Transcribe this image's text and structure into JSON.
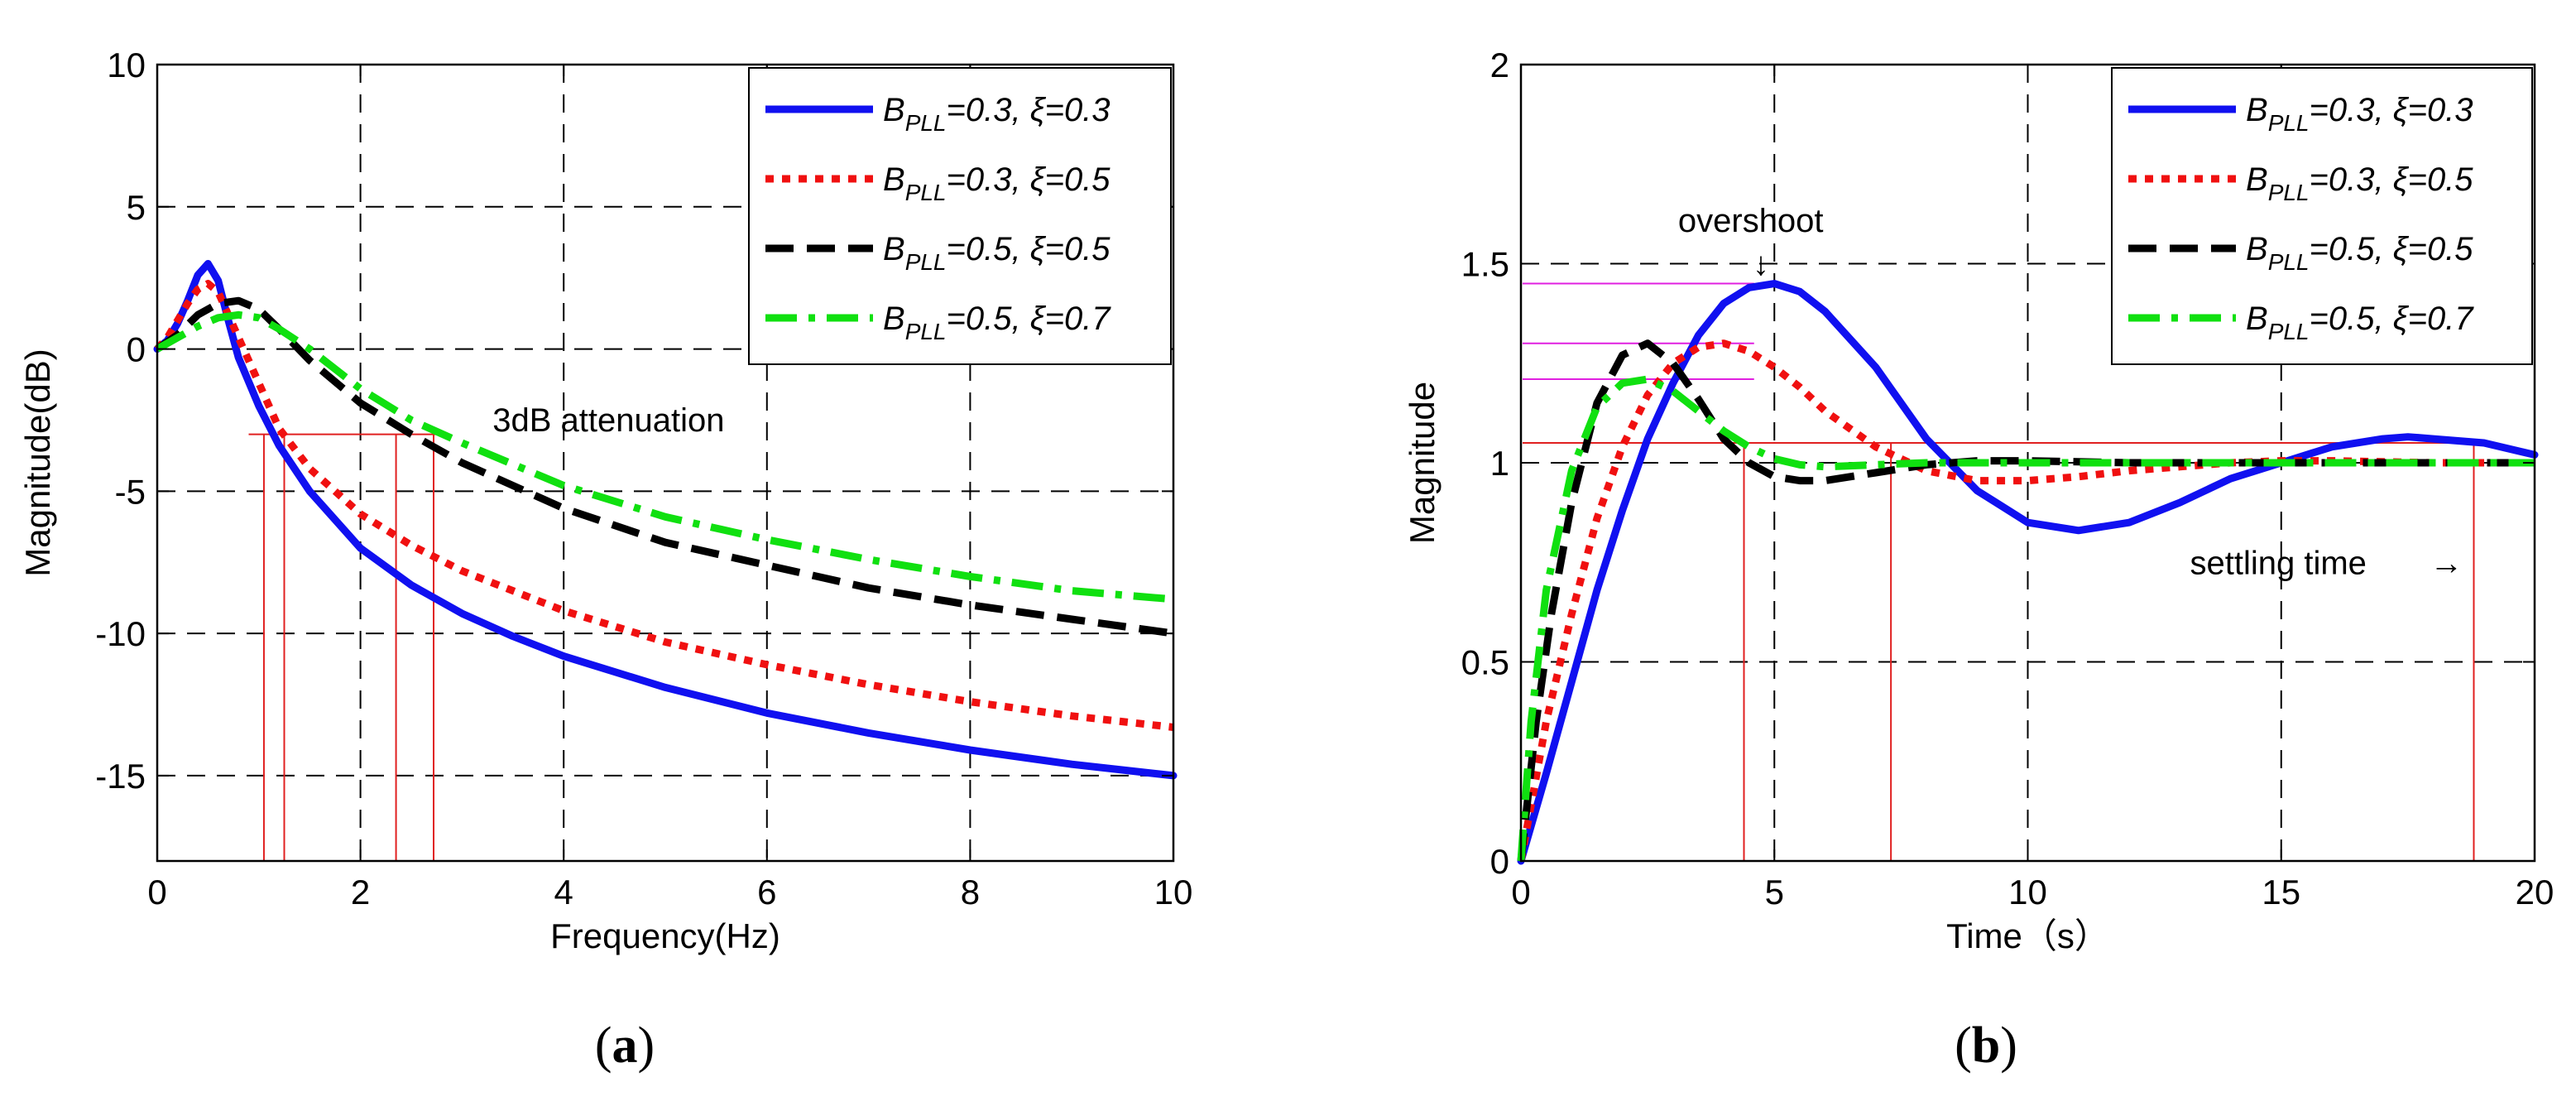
{
  "colors": {
    "series": [
      "#1010f0",
      "#f01010",
      "#000000",
      "#10e010"
    ],
    "marker_red": "#e02020",
    "marker_magenta": "#e020e0",
    "grid": "#000000"
  },
  "chart_data": [
    {
      "type": "line",
      "panel": "a",
      "caption": "a",
      "xlabel": "Frequency(Hz)",
      "ylabel": "Magnitude(dB)",
      "xlim": [
        0,
        10
      ],
      "ylim": [
        -18,
        10
      ],
      "xticks": [
        0,
        2,
        4,
        6,
        8,
        10
      ],
      "yticks": [
        -15,
        -10,
        -5,
        0,
        5,
        10
      ],
      "xtick_labels": [
        "0",
        "2",
        "4",
        "6",
        "8",
        "10"
      ],
      "ytick_labels": [
        "-15",
        "-10",
        "-5",
        "0",
        "5",
        "10"
      ],
      "grid": true,
      "legend_position": "top-right",
      "annotations": [
        {
          "text": "3dB attenuation",
          "x": 3.3,
          "y": -2.9
        }
      ],
      "reference_lines": {
        "level": -3,
        "x_marks": [
          1.05,
          1.25,
          2.35,
          2.72
        ]
      },
      "series": [
        {
          "name": "B_PLL=0.3, ξ=0.3",
          "legend": {
            "b": "B",
            "sub": "PLL",
            "rest": "=0.3, ",
            "xi": "ξ",
            "val": "=0.3"
          },
          "style": "solid",
          "x": [
            0,
            0.1,
            0.2,
            0.3,
            0.4,
            0.5,
            0.6,
            0.7,
            0.8,
            1.0,
            1.2,
            1.5,
            2.0,
            2.5,
            3.0,
            3.5,
            4.0,
            5.0,
            6.0,
            7.0,
            8.0,
            9.0,
            10.0
          ],
          "y": [
            0,
            0.3,
            0.9,
            1.7,
            2.6,
            3.0,
            2.4,
            1.0,
            -0.3,
            -2.0,
            -3.4,
            -5.0,
            -7.0,
            -8.3,
            -9.3,
            -10.1,
            -10.8,
            -11.9,
            -12.8,
            -13.5,
            -14.1,
            -14.6,
            -15.0
          ]
        },
        {
          "name": "B_PLL=0.3, ξ=0.5",
          "legend": {
            "b": "B",
            "sub": "PLL",
            "rest": "=0.3, ",
            "xi": "ξ",
            "val": "=0.5"
          },
          "style": "dotted",
          "x": [
            0,
            0.1,
            0.2,
            0.3,
            0.4,
            0.5,
            0.6,
            0.7,
            0.8,
            1.0,
            1.2,
            1.5,
            2.0,
            2.5,
            3.0,
            4.0,
            5.0,
            6.0,
            7.0,
            8.0,
            9.0,
            10.0
          ],
          "y": [
            0,
            0.4,
            1.0,
            1.6,
            2.1,
            2.3,
            2.0,
            1.2,
            0.4,
            -1.2,
            -2.8,
            -4.2,
            -5.8,
            -6.9,
            -7.8,
            -9.2,
            -10.3,
            -11.1,
            -11.8,
            -12.4,
            -12.9,
            -13.3
          ]
        },
        {
          "name": "B_PLL=0.5, ξ=0.5",
          "legend": {
            "b": "B",
            "sub": "PLL",
            "rest": "=0.5, ",
            "xi": "ξ",
            "val": "=0.5"
          },
          "style": "dashed",
          "x": [
            0,
            0.2,
            0.4,
            0.6,
            0.8,
            1.0,
            1.2,
            1.5,
            2.0,
            2.5,
            3.0,
            4.0,
            5.0,
            6.0,
            7.0,
            8.0,
            9.0,
            10.0
          ],
          "y": [
            0,
            0.5,
            1.2,
            1.6,
            1.7,
            1.4,
            0.7,
            -0.4,
            -1.9,
            -3.0,
            -4.0,
            -5.6,
            -6.8,
            -7.6,
            -8.4,
            -9.0,
            -9.5,
            -10.0
          ]
        },
        {
          "name": "B_PLL=0.5, ξ=0.7",
          "legend": {
            "b": "B",
            "sub": "PLL",
            "rest": "=0.5, ",
            "xi": "ξ",
            "val": "=0.7"
          },
          "style": "dashdot",
          "x": [
            0,
            0.2,
            0.4,
            0.6,
            0.8,
            1.0,
            1.2,
            1.5,
            2.0,
            2.5,
            3.0,
            4.0,
            5.0,
            6.0,
            7.0,
            8.0,
            9.0,
            10.0
          ],
          "y": [
            0,
            0.4,
            0.8,
            1.1,
            1.2,
            1.1,
            0.7,
            0.0,
            -1.4,
            -2.5,
            -3.3,
            -4.8,
            -5.9,
            -6.7,
            -7.4,
            -8.0,
            -8.5,
            -8.8
          ]
        }
      ]
    },
    {
      "type": "line",
      "panel": "b",
      "caption": "b",
      "xlabel": "Time（s）",
      "ylabel": "Magnitude",
      "xlim": [
        0,
        20
      ],
      "ylim": [
        0,
        2
      ],
      "xticks": [
        0,
        5,
        10,
        15,
        20
      ],
      "yticks": [
        0,
        0.5,
        1,
        1.5,
        2
      ],
      "xtick_labels": [
        "0",
        "5",
        "10",
        "15",
        "20"
      ],
      "ytick_labels": [
        "0",
        "0.5",
        "1",
        "1.5",
        "2"
      ],
      "grid": true,
      "legend_position": "top-right",
      "annotations": [
        {
          "text": "overshoot",
          "arrow": "↓",
          "x": 3.1,
          "y": 1.58
        },
        {
          "text": "settling time",
          "arrow": "→",
          "x": 13.2,
          "y": 0.72
        }
      ],
      "reference_lines": {
        "overshoot_levels": [
          1.45,
          1.3,
          1.21
        ],
        "band": 1.05,
        "x_marks": [
          4.4,
          7.3,
          18.8
        ]
      },
      "series": [
        {
          "name": "B_PLL=0.3, ξ=0.3",
          "legend": {
            "b": "B",
            "sub": "PLL",
            "rest": "=0.3, ",
            "xi": "ξ",
            "val": "=0.3"
          },
          "style": "solid",
          "x": [
            0,
            0.5,
            1.0,
            1.5,
            2.0,
            2.5,
            3.0,
            3.5,
            4.0,
            4.5,
            5.0,
            5.5,
            6.0,
            7.0,
            8.0,
            9.0,
            10.0,
            11.0,
            12.0,
            13.0,
            14.0,
            15.0,
            16.0,
            17.0,
            17.5,
            18.0,
            19.0,
            20.0
          ],
          "y": [
            0,
            0.22,
            0.45,
            0.68,
            0.88,
            1.06,
            1.2,
            1.32,
            1.4,
            1.44,
            1.45,
            1.43,
            1.38,
            1.24,
            1.06,
            0.93,
            0.85,
            0.83,
            0.85,
            0.9,
            0.96,
            1.0,
            1.04,
            1.06,
            1.065,
            1.06,
            1.05,
            1.02
          ]
        },
        {
          "name": "B_PLL=0.3, ξ=0.5",
          "legend": {
            "b": "B",
            "sub": "PLL",
            "rest": "=0.3, ",
            "xi": "ξ",
            "val": "=0.5"
          },
          "style": "dotted",
          "x": [
            0,
            0.5,
            1.0,
            1.5,
            2.0,
            2.5,
            3.0,
            3.5,
            4.0,
            4.5,
            5.0,
            5.5,
            6.0,
            7.0,
            8.0,
            9.0,
            10.0,
            11.0,
            12.0,
            13.0,
            14.0,
            15.0,
            16.0,
            18.0,
            20.0
          ],
          "y": [
            0,
            0.35,
            0.62,
            0.86,
            1.04,
            1.17,
            1.25,
            1.29,
            1.3,
            1.28,
            1.24,
            1.19,
            1.13,
            1.04,
            0.98,
            0.955,
            0.955,
            0.965,
            0.98,
            0.99,
            1.0,
            1.005,
            1.005,
            1.0,
            1.0
          ]
        },
        {
          "name": "B_PLL=0.5, ξ=0.5",
          "legend": {
            "b": "B",
            "sub": "PLL",
            "rest": "=0.5, ",
            "xi": "ξ",
            "val": "=0.5"
          },
          "style": "dashed",
          "x": [
            0,
            0.3,
            0.6,
            1.0,
            1.5,
            2.0,
            2.5,
            3.0,
            3.5,
            4.0,
            4.5,
            5.0,
            5.5,
            6.0,
            7.0,
            8.0,
            9.0,
            10.0,
            12.0,
            14.0,
            16.0,
            18.0,
            20.0
          ],
          "y": [
            0,
            0.35,
            0.62,
            0.9,
            1.15,
            1.27,
            1.3,
            1.25,
            1.16,
            1.06,
            1.0,
            0.965,
            0.955,
            0.955,
            0.975,
            0.995,
            1.005,
            1.005,
            1.0,
            1.0,
            1.0,
            1.0,
            1.0
          ]
        },
        {
          "name": "B_PLL=0.5, ξ=0.7",
          "legend": {
            "b": "B",
            "sub": "PLL",
            "rest": "=0.5, ",
            "xi": "ξ",
            "val": "=0.7"
          },
          "style": "dashdot",
          "x": [
            0,
            0.2,
            0.5,
            1.0,
            1.5,
            2.0,
            2.5,
            3.0,
            3.5,
            4.0,
            4.5,
            5.0,
            5.5,
            6.0,
            7.0,
            8.0,
            10.0,
            12.0,
            15.0,
            18.0,
            20.0
          ],
          "y": [
            0,
            0.35,
            0.68,
            0.98,
            1.14,
            1.2,
            1.21,
            1.18,
            1.13,
            1.08,
            1.04,
            1.01,
            0.995,
            0.99,
            0.995,
            1.0,
            1.0,
            1.0,
            1.0,
            1.0,
            1.0
          ]
        }
      ]
    }
  ]
}
